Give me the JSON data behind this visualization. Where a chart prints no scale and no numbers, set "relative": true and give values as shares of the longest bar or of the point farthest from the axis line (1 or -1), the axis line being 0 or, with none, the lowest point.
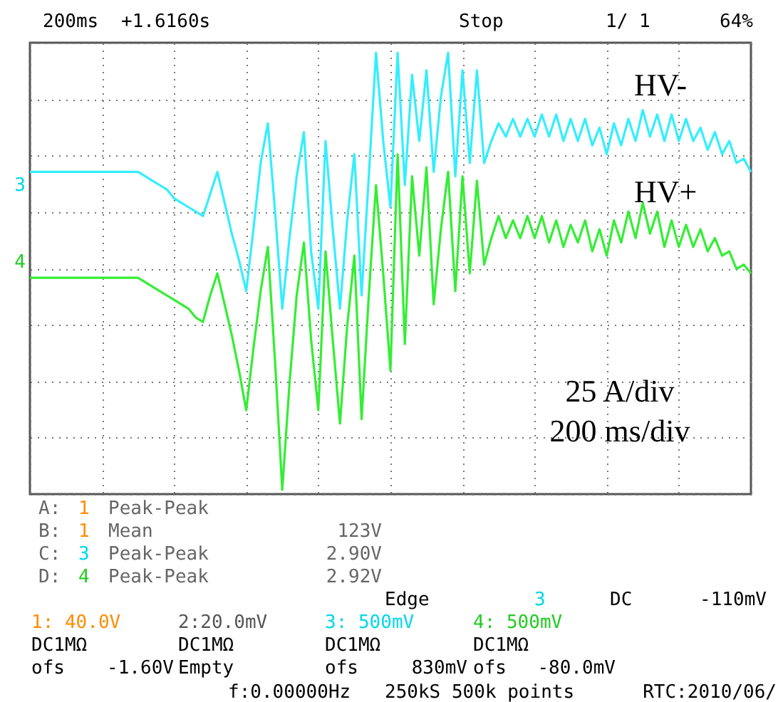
{
  "chart_data": {
    "type": "line",
    "relative": true,
    "grid": true,
    "categories": [
      null,
      null,
      null,
      null,
      null,
      null,
      null,
      null,
      null,
      null,
      null,
      null,
      null,
      null,
      null,
      null,
      null,
      null,
      null,
      null,
      null,
      null,
      null,
      null,
      null,
      null,
      null,
      null,
      null,
      null,
      null,
      null,
      null,
      null,
      null,
      null,
      null,
      null,
      null,
      null,
      null,
      null,
      null,
      null,
      null,
      null,
      null,
      null,
      null,
      null,
      null,
      null,
      null,
      null,
      null,
      null,
      null,
      null,
      null,
      null,
      null,
      null,
      null,
      null,
      null,
      null,
      null,
      null,
      null,
      null,
      null,
      null,
      null,
      null,
      null,
      null,
      null,
      null,
      null,
      null,
      null,
      null,
      null,
      null,
      null,
      null,
      null,
      null,
      null,
      null,
      null,
      null,
      null,
      null,
      null,
      null,
      null,
      null,
      null,
      null,
      null
    ],
    "series": [
      {
        "name": "HV-",
        "color": "#33eeff",
        "values": [
          0.73,
          0.73,
          0.73,
          0.73,
          0.73,
          0.73,
          0.73,
          0.73,
          0.73,
          0.73,
          0.73,
          0.73,
          0.73,
          0.73,
          0.73,
          0.73,
          0.72,
          0.71,
          0.7,
          0.69,
          0.67,
          0.66,
          0.65,
          0.64,
          0.63,
          0.68,
          0.73,
          0.66,
          0.59,
          0.53,
          0.46,
          0.6,
          0.75,
          0.84,
          0.64,
          0.42,
          0.58,
          0.72,
          0.82,
          0.55,
          0.42,
          0.8,
          0.6,
          0.42,
          0.62,
          0.77,
          0.45,
          0.72,
          1.0,
          0.8,
          0.65,
          1.0,
          0.7,
          0.95,
          0.8,
          0.96,
          0.73,
          0.9,
          1.0,
          0.72,
          0.96,
          0.75,
          0.96,
          0.75,
          0.8,
          0.84,
          0.81,
          0.85,
          0.81,
          0.85,
          0.81,
          0.86,
          0.81,
          0.86,
          0.8,
          0.85,
          0.8,
          0.85,
          0.79,
          0.83,
          0.77,
          0.84,
          0.79,
          0.85,
          0.8,
          0.87,
          0.81,
          0.86,
          0.8,
          0.86,
          0.8,
          0.85,
          0.8,
          0.83,
          0.78,
          0.82,
          0.77,
          0.8,
          0.75,
          0.76,
          0.73
        ]
      },
      {
        "name": "HV+",
        "color": "#33ee33",
        "values": [
          0.49,
          0.49,
          0.49,
          0.49,
          0.49,
          0.49,
          0.49,
          0.49,
          0.49,
          0.49,
          0.49,
          0.49,
          0.49,
          0.49,
          0.49,
          0.49,
          0.48,
          0.47,
          0.46,
          0.45,
          0.44,
          0.43,
          0.42,
          0.4,
          0.39,
          0.45,
          0.5,
          0.43,
          0.36,
          0.28,
          0.19,
          0.33,
          0.46,
          0.56,
          0.3,
          0.01,
          0.25,
          0.45,
          0.57,
          0.35,
          0.19,
          0.55,
          0.35,
          0.16,
          0.38,
          0.54,
          0.17,
          0.45,
          0.7,
          0.5,
          0.28,
          0.77,
          0.34,
          0.72,
          0.54,
          0.74,
          0.43,
          0.6,
          0.73,
          0.46,
          0.72,
          0.5,
          0.71,
          0.52,
          0.58,
          0.63,
          0.58,
          0.62,
          0.58,
          0.63,
          0.58,
          0.63,
          0.57,
          0.62,
          0.56,
          0.61,
          0.57,
          0.62,
          0.55,
          0.6,
          0.54,
          0.62,
          0.57,
          0.64,
          0.58,
          0.66,
          0.59,
          0.64,
          0.56,
          0.62,
          0.56,
          0.61,
          0.56,
          0.6,
          0.55,
          0.58,
          0.54,
          0.55,
          0.51,
          0.52,
          0.5
        ]
      }
    ],
    "annotations": [
      "200ms",
      "+1.6160s",
      "Stop",
      "1/   1",
      "64%",
      "A:",
      "1",
      "Peak-Peak",
      "B:",
      "1",
      "Mean",
      "123V",
      "C:",
      "3",
      "Peak-Peak",
      "2.90V",
      "D:",
      "4",
      "Peak-Peak",
      "2.92V",
      "Edge",
      "3",
      "DC",
      "-110mV",
      "1: 40.0V",
      "DC1MΩ",
      "ofs",
      "-1.60V",
      "2:20.0mV",
      "DC1MΩ",
      "Empty",
      "3: 500mV",
      "DC1MΩ",
      "ofs",
      "830mV",
      "4: 500mV",
      "DC1MΩ",
      "ofs",
      "-80.0mV",
      "f:0.00000Hz",
      "250kS 500k points",
      "RTC:2010/06/",
      "25 A/div",
      "200 ms/div",
      "3",
      "4"
    ]
  }
}
